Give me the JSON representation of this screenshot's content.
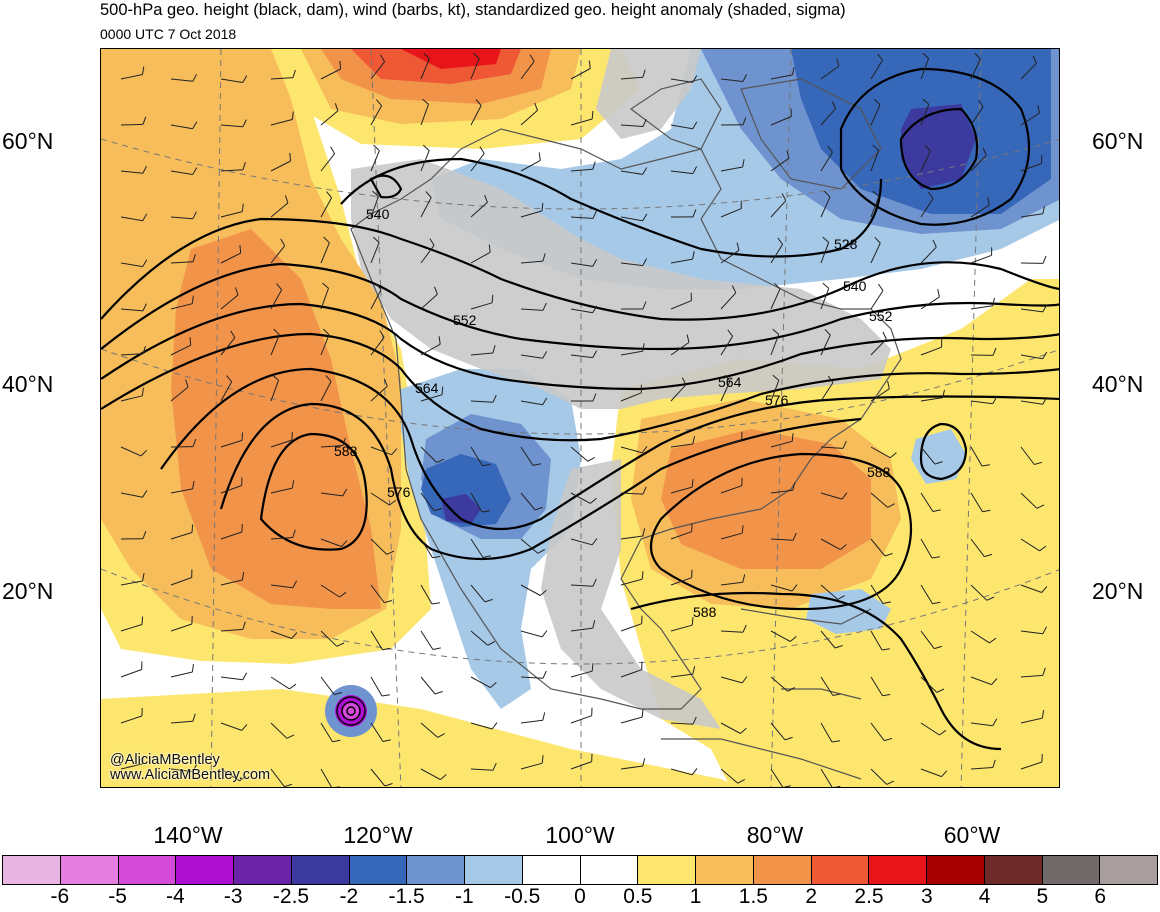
{
  "title": "500-hPa geo. height (black, dam), wind (barbs, kt), standardized geo. height anomaly (shaded, sigma)",
  "subtitle": "0000 UTC 7 Oct 2018",
  "credit": {
    "handle": "@AliciaMBentley",
    "website": "www.AliciaMBentley.com"
  },
  "latitude_labels": [
    "60°N",
    "40°N",
    "20°N"
  ],
  "longitude_labels": [
    "140°W",
    "120°W",
    "100°W",
    "80°W",
    "60°W"
  ],
  "contour_labels": [
    "540",
    "528",
    "540",
    "552",
    "552",
    "564",
    "564",
    "576",
    "588",
    "576",
    "588",
    "588"
  ],
  "colorbar": {
    "colors": [
      "#e9b5e3",
      "#e47ee0",
      "#d34bd6",
      "#ac0fd0",
      "#6a22a6",
      "#3c3a9e",
      "#3767b9",
      "#6e93cf",
      "#a6c9e8",
      "#ffffff",
      "#ffffff",
      "#fde66e",
      "#f6bd5a",
      "#f2934a",
      "#ef5834",
      "#e7151a",
      "#a60002",
      "#6d2a28",
      "#716a6a",
      "#a79e9d"
    ],
    "labels": [
      "-6",
      "-5",
      "-4",
      "-3",
      "-2.5",
      "-2",
      "-1.5",
      "-1",
      "-0.5",
      "0",
      "0.5",
      "1",
      "1.5",
      "2",
      "2.5",
      "3",
      "4",
      "5",
      "6"
    ]
  },
  "map_colors": {
    "land_no_anomaly": "#c9c9c9",
    "anomaly_neg_05": "#a6c9e8",
    "anomaly_neg_1": "#6e93cf",
    "anomaly_neg_15": "#3767b9",
    "anomaly_neg_2": "#3c3a9e",
    "anomaly_pos_05": "#fde66e",
    "anomaly_pos_1": "#f6bd5a",
    "anomaly_pos_15": "#f2934a",
    "anomaly_pos_2": "#ef5834",
    "anomaly_pos_25": "#e7151a",
    "coastline": "#555555",
    "contour": "#000000"
  }
}
